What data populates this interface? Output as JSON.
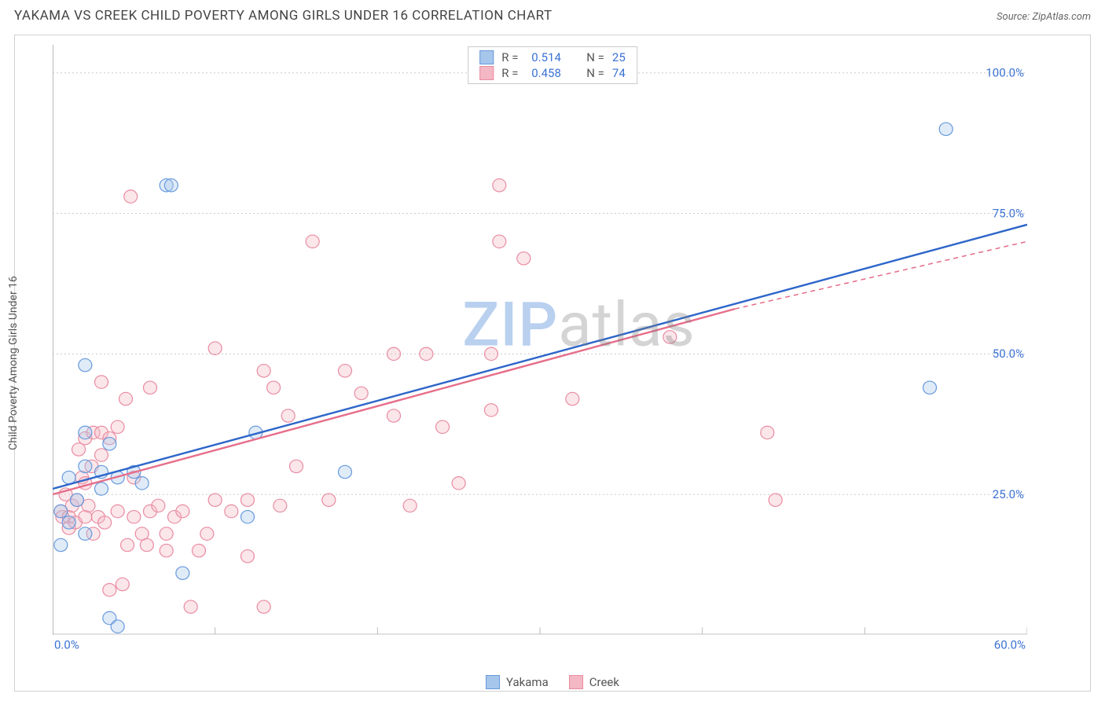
{
  "header": {
    "title": "YAKAMA VS CREEK CHILD POVERTY AMONG GIRLS UNDER 16 CORRELATION CHART",
    "source_prefix": "Source: ",
    "source_name": "ZipAtlas.com"
  },
  "ylabel": "Child Poverty Among Girls Under 16",
  "watermark": {
    "zip": "ZIP",
    "atlas": "atlas"
  },
  "chart": {
    "type": "scatter-with-regression",
    "background_color": "#ffffff",
    "grid_color": "#cccccc",
    "axis_color": "#bababa",
    "label_color": "#3b72d4",
    "xlim": [
      0,
      60
    ],
    "ylim": [
      0,
      105
    ],
    "xticks": [
      0,
      10,
      20,
      30,
      40,
      50,
      60
    ],
    "xtick_labels": [
      "0.0%",
      "",
      "",
      "",
      "",
      "",
      "60.0%"
    ],
    "yticks": [
      25,
      50,
      75,
      100
    ],
    "ytick_labels": [
      "25.0%",
      "50.0%",
      "75.0%",
      "100.0%"
    ],
    "series": {
      "yakama": {
        "label": "Yakama",
        "fill": "#a7c6ec",
        "stroke": "#6699dd",
        "line_color": "#2e66c9",
        "r_value": "0.514",
        "n_value": "25",
        "regression": {
          "x1": 0,
          "y1": 26,
          "x2": 60,
          "y2": 73
        },
        "points": [
          [
            0.5,
            22
          ],
          [
            0.5,
            16
          ],
          [
            1,
            28
          ],
          [
            1,
            20
          ],
          [
            1.5,
            24
          ],
          [
            2,
            48
          ],
          [
            2,
            36
          ],
          [
            2,
            30
          ],
          [
            2,
            18
          ],
          [
            3,
            29
          ],
          [
            3,
            26
          ],
          [
            3.5,
            34
          ],
          [
            3.5,
            3
          ],
          [
            4,
            1.5
          ],
          [
            4,
            28
          ],
          [
            5,
            29
          ],
          [
            5.5,
            27
          ],
          [
            7,
            80
          ],
          [
            7.3,
            80
          ],
          [
            8,
            11
          ],
          [
            12,
            21
          ],
          [
            12.5,
            36
          ],
          [
            18,
            29
          ],
          [
            54,
            44
          ],
          [
            55,
            90
          ]
        ]
      },
      "creek": {
        "label": "Creek",
        "fill": "#f4b7c4",
        "stroke": "#e98ba0",
        "line_color": "#e66f8b",
        "r_value": "0.458",
        "n_value": "74",
        "regression": {
          "x1": 0,
          "y1": 25,
          "x2": 42,
          "y2": 58
        },
        "regression_dash": {
          "x1": 42,
          "y1": 58,
          "x2": 60,
          "y2": 70
        },
        "points": [
          [
            0.5,
            22
          ],
          [
            0.6,
            21
          ],
          [
            0.8,
            25
          ],
          [
            1,
            21
          ],
          [
            1,
            19
          ],
          [
            1.2,
            23
          ],
          [
            1.4,
            20
          ],
          [
            1.5,
            24
          ],
          [
            1.6,
            33
          ],
          [
            1.8,
            28
          ],
          [
            2,
            21
          ],
          [
            2,
            27
          ],
          [
            2,
            35
          ],
          [
            2.2,
            23
          ],
          [
            2.4,
            30
          ],
          [
            2.5,
            18
          ],
          [
            2.5,
            36
          ],
          [
            2.8,
            21
          ],
          [
            3,
            45
          ],
          [
            3,
            36
          ],
          [
            3,
            32
          ],
          [
            3.2,
            20
          ],
          [
            3.5,
            35
          ],
          [
            3.5,
            8
          ],
          [
            4,
            22
          ],
          [
            4,
            37
          ],
          [
            4.3,
            9
          ],
          [
            4.5,
            42
          ],
          [
            4.6,
            16
          ],
          [
            4.8,
            78
          ],
          [
            5,
            21
          ],
          [
            5,
            28
          ],
          [
            5.5,
            18
          ],
          [
            5.8,
            16
          ],
          [
            6,
            22
          ],
          [
            6,
            44
          ],
          [
            6.5,
            23
          ],
          [
            7,
            18
          ],
          [
            7,
            15
          ],
          [
            7.5,
            21
          ],
          [
            8,
            22
          ],
          [
            8.5,
            5
          ],
          [
            9,
            15
          ],
          [
            9.5,
            18
          ],
          [
            10,
            24
          ],
          [
            10,
            51
          ],
          [
            11,
            22
          ],
          [
            12,
            14
          ],
          [
            12,
            24
          ],
          [
            13,
            47
          ],
          [
            13,
            5
          ],
          [
            13.6,
            44
          ],
          [
            14,
            23
          ],
          [
            14.5,
            39
          ],
          [
            15,
            30
          ],
          [
            16,
            70
          ],
          [
            17,
            24
          ],
          [
            18,
            47
          ],
          [
            19,
            43
          ],
          [
            21,
            39
          ],
          [
            21,
            50
          ],
          [
            22,
            23
          ],
          [
            23,
            50
          ],
          [
            24,
            37
          ],
          [
            25,
            27
          ],
          [
            27,
            50
          ],
          [
            27,
            40
          ],
          [
            27.5,
            70
          ],
          [
            27.5,
            80
          ],
          [
            29,
            67
          ],
          [
            32,
            42
          ],
          [
            38,
            53
          ],
          [
            44,
            36
          ],
          [
            44.5,
            24
          ]
        ]
      }
    }
  },
  "legend_top": [
    {
      "series": "yakama",
      "r_label": "R =",
      "n_label": "N ="
    },
    {
      "series": "creek",
      "r_label": "R =",
      "n_label": "N ="
    }
  ],
  "legend_bottom": [
    "yakama",
    "creek"
  ]
}
